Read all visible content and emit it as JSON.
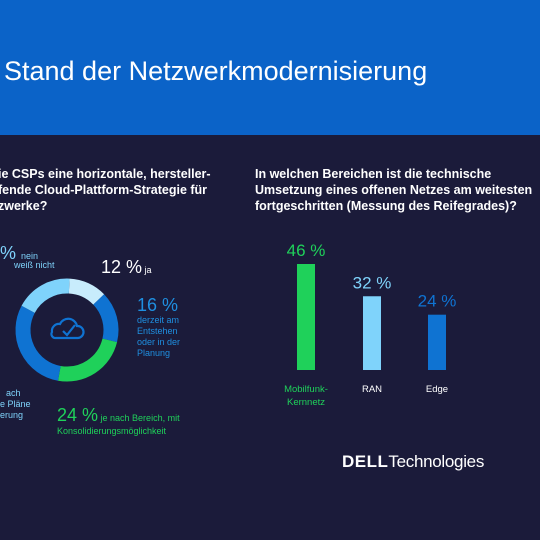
{
  "header": {
    "title": "Stand der Netzwerkmodernisierung"
  },
  "left_question": {
    "lines": [
      "ie CSPs eine horizontale, hersteller-",
      "fende Cloud-Plattform-Strategie für",
      "zwerke?"
    ]
  },
  "right_question": {
    "lines": [
      "In welchen Bereichen ist die technische",
      "Umsetzung eines offenen Netzes am weitesten",
      "fortgeschritten (Messung des Reifegrades)?"
    ]
  },
  "donut_labels": {
    "nein": {
      "pct": "% ",
      "line1": "nein",
      "line2": "weiß nicht"
    },
    "ja": {
      "pct": "12 %",
      "text": " ja"
    },
    "planung": {
      "pct": "16 %",
      "lines": [
        "derzeit am",
        "Entstehen",
        "oder in der",
        "Planung"
      ]
    },
    "bereich": {
      "pct": "24 %",
      "text": " je nach Bereich, mit",
      "line2": "Konsolidierungsmöglichkeit"
    },
    "cut": {
      "lines": [
        "ach",
        "e Pläne",
        "erung"
      ]
    }
  },
  "colors": {
    "header": "#0b63c8",
    "background": "#1b1b3a",
    "green": "#1fd15a",
    "light_blue": "#7fd3fb",
    "blue": "#0f73d2",
    "pale_blue": "#c8ecfc"
  },
  "icon": "cloud-check-icon",
  "chart_data": [
    {
      "type": "pie",
      "slices": [
        {
          "label": "ja",
          "value": 12,
          "color": "#c8ecfc"
        },
        {
          "label": "derzeit am Entstehen oder in der Planung",
          "value": 16,
          "color": "#0f73d2"
        },
        {
          "label": "je nach Bereich, mit Konsolidierungsmöglichkeit",
          "value": 24,
          "color": "#1fd15a"
        },
        {
          "label": "(partially visible) Pläne",
          "value": 30,
          "color": "#0f73d2"
        },
        {
          "label": "nein / weiß nicht",
          "value": 18,
          "color": "#7fd3fb"
        }
      ],
      "donut": true
    },
    {
      "type": "bar",
      "categories": [
        "Mobilfunk-\nKernnetz",
        "RAN",
        "Edge"
      ],
      "category_lines": [
        [
          "Mobilfunk-",
          "Kernnetz"
        ],
        [
          "RAN"
        ],
        [
          "Edge"
        ]
      ],
      "values": [
        46,
        32,
        24
      ],
      "value_labels": [
        "46 %",
        "32 %",
        "24 %"
      ],
      "colors": [
        "#1fd15a",
        "#7fd3fb",
        "#0f73d2"
      ],
      "ylim": [
        0,
        46
      ]
    }
  ],
  "logo": {
    "bold": "DELL",
    "rest": "Technologies"
  }
}
